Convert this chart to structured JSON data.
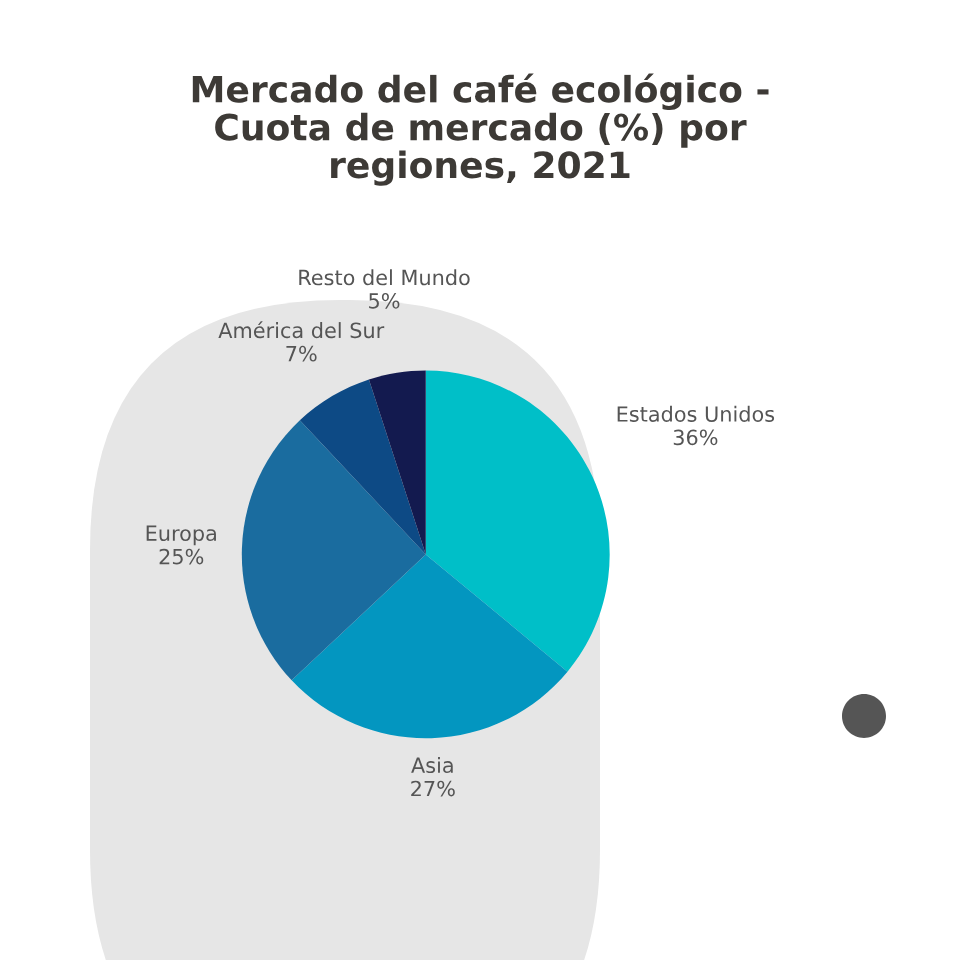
{
  "chart_data": {
    "type": "pie",
    "title": "Mercado del café ecológico -\nCuota de mercado (%) por\nregiones, 2021",
    "categories": [
      "Estados Unidos",
      "Asia",
      "Europa",
      "América del Sur",
      "Resto del Mundo"
    ],
    "values": [
      36,
      27,
      25,
      7,
      5
    ],
    "value_labels": [
      "36%",
      "27%",
      "25%",
      "7%",
      "5%"
    ],
    "colors": [
      "#00bfc8",
      "#0396c0",
      "#1a6c9f",
      "#0d4a85",
      "#131a4f"
    ]
  }
}
